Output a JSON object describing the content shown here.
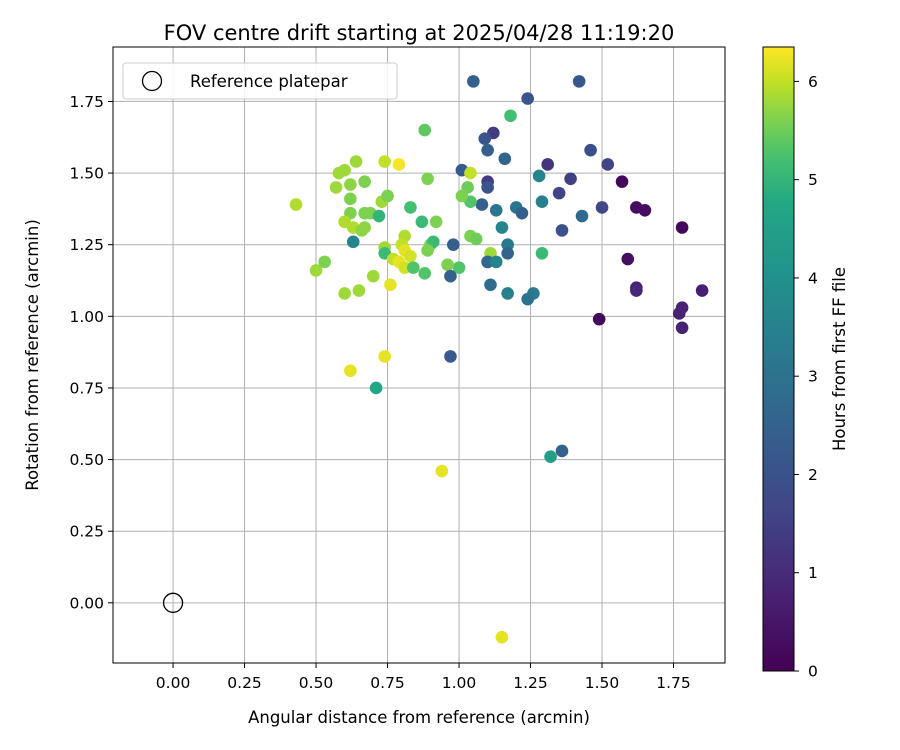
{
  "chart_data": {
    "type": "scatter",
    "title": "FOV centre drift starting at 2025/04/28 11:19:20",
    "xlabel": "Angular distance from reference (arcmin)",
    "ylabel": "Rotation from reference (arcmin)",
    "xlim": [
      -0.21,
      1.93
    ],
    "ylim": [
      -0.21,
      1.94
    ],
    "x_ticks": [
      0.0,
      0.25,
      0.5,
      0.75,
      1.0,
      1.25,
      1.5,
      1.75
    ],
    "x_tick_labels": [
      "0.00",
      "0.25",
      "0.50",
      "0.75",
      "1.00",
      "1.25",
      "1.50",
      "1.75"
    ],
    "y_ticks": [
      0.0,
      0.25,
      0.5,
      0.75,
      1.0,
      1.25,
      1.5,
      1.75
    ],
    "y_tick_labels": [
      "0.00",
      "0.25",
      "0.50",
      "0.75",
      "1.00",
      "1.25",
      "1.50",
      "1.75"
    ],
    "grid": true,
    "colorbar": {
      "label": "Hours from first FF file",
      "range": [
        0,
        6.35
      ],
      "ticks": [
        0,
        1,
        2,
        3,
        4,
        5,
        6
      ],
      "tick_labels": [
        "0",
        "1",
        "2",
        "3",
        "4",
        "5",
        "6"
      ],
      "colormap": "viridis"
    },
    "legend": {
      "position": "top-left",
      "entries": [
        "Reference platepar"
      ]
    },
    "reference_point": {
      "x": 0.0,
      "y": 0.0,
      "label": "Reference platepar"
    },
    "points": [
      [
        1.05,
        1.82,
        2.5
      ],
      [
        1.42,
        1.82,
        2.2
      ],
      [
        1.24,
        1.76,
        2.1
      ],
      [
        1.18,
        1.7,
        5.2
      ],
      [
        1.12,
        1.64,
        1.4
      ],
      [
        1.09,
        1.62,
        2.1
      ],
      [
        1.1,
        1.58,
        2.4
      ],
      [
        0.88,
        1.65,
        5.4
      ],
      [
        1.16,
        1.55,
        2.6
      ],
      [
        1.46,
        1.58,
        1.9
      ],
      [
        1.52,
        1.53,
        1.6
      ],
      [
        1.57,
        1.47,
        0.2
      ],
      [
        1.31,
        1.53,
        1.2
      ],
      [
        1.39,
        1.48,
        1.5
      ],
      [
        1.35,
        1.43,
        1.6
      ],
      [
        1.28,
        1.49,
        3.6
      ],
      [
        1.29,
        1.4,
        3.4
      ],
      [
        1.43,
        1.35,
        2.7
      ],
      [
        1.5,
        1.38,
        1.7
      ],
      [
        1.62,
        1.38,
        0.3
      ],
      [
        1.65,
        1.37,
        0.3
      ],
      [
        1.36,
        1.3,
        2.0
      ],
      [
        1.78,
        1.31,
        0.2
      ],
      [
        1.59,
        1.2,
        0.3
      ],
      [
        1.62,
        1.1,
        0.8
      ],
      [
        1.62,
        1.09,
        0.9
      ],
      [
        1.85,
        1.09,
        0.7
      ],
      [
        1.78,
        1.03,
        0.8
      ],
      [
        1.77,
        1.01,
        0.8
      ],
      [
        1.49,
        0.99,
        0.2
      ],
      [
        1.78,
        0.96,
        0.8
      ],
      [
        1.2,
        1.38,
        3.1
      ],
      [
        1.22,
        1.36,
        2.4
      ],
      [
        1.13,
        1.37,
        3.1
      ],
      [
        1.08,
        1.39,
        2.4
      ],
      [
        1.1,
        1.47,
        1.4
      ],
      [
        1.1,
        1.45,
        2.1
      ],
      [
        1.01,
        1.51,
        2.3
      ],
      [
        1.04,
        1.5,
        6.0
      ],
      [
        1.03,
        1.45,
        5.5
      ],
      [
        1.04,
        1.4,
        5.3
      ],
      [
        1.01,
        1.42,
        5.6
      ],
      [
        1.15,
        1.31,
        3.6
      ],
      [
        1.04,
        1.28,
        5.6
      ],
      [
        1.06,
        1.27,
        5.5
      ],
      [
        0.98,
        1.25,
        2.4
      ],
      [
        1.17,
        1.25,
        3.2
      ],
      [
        1.17,
        1.22,
        2.6
      ],
      [
        1.29,
        1.22,
        5.1
      ],
      [
        1.11,
        1.22,
        5.8
      ],
      [
        1.1,
        1.19,
        3.0
      ],
      [
        1.1,
        1.19,
        2.7
      ],
      [
        1.13,
        1.19,
        3.5
      ],
      [
        1.0,
        1.17,
        5.3
      ],
      [
        0.96,
        1.18,
        5.6
      ],
      [
        0.97,
        1.14,
        2.5
      ],
      [
        1.11,
        1.11,
        2.8
      ],
      [
        1.17,
        1.08,
        3.4
      ],
      [
        1.26,
        1.08,
        3.2
      ],
      [
        1.24,
        1.06,
        3.0
      ],
      [
        0.97,
        0.86,
        2.3
      ],
      [
        1.36,
        0.53,
        2.5
      ],
      [
        1.32,
        0.51,
        4.5
      ],
      [
        0.94,
        0.46,
        6.2
      ],
      [
        1.15,
        -0.12,
        6.2
      ],
      [
        0.43,
        1.39,
        5.9
      ],
      [
        0.64,
        1.54,
        5.8
      ],
      [
        0.58,
        1.5,
        5.8
      ],
      [
        0.6,
        1.51,
        5.8
      ],
      [
        0.57,
        1.45,
        5.8
      ],
      [
        0.62,
        1.46,
        5.7
      ],
      [
        0.67,
        1.47,
        5.6
      ],
      [
        0.74,
        1.54,
        6.0
      ],
      [
        0.79,
        1.53,
        6.3
      ],
      [
        0.89,
        1.48,
        5.6
      ],
      [
        0.62,
        1.41,
        5.6
      ],
      [
        0.73,
        1.4,
        5.8
      ],
      [
        0.75,
        1.42,
        5.6
      ],
      [
        0.83,
        1.38,
        5.2
      ],
      [
        0.62,
        1.36,
        5.6
      ],
      [
        0.67,
        1.36,
        5.6
      ],
      [
        0.69,
        1.36,
        5.6
      ],
      [
        0.72,
        1.35,
        5.0
      ],
      [
        0.87,
        1.33,
        5.1
      ],
      [
        0.92,
        1.33,
        5.6
      ],
      [
        0.6,
        1.33,
        5.9
      ],
      [
        0.63,
        1.31,
        5.9
      ],
      [
        0.66,
        1.3,
        5.7
      ],
      [
        0.67,
        1.31,
        5.7
      ],
      [
        0.63,
        1.26,
        3.6
      ],
      [
        0.81,
        1.28,
        5.9
      ],
      [
        0.8,
        1.25,
        6.0
      ],
      [
        0.9,
        1.25,
        5.6
      ],
      [
        0.91,
        1.26,
        5.1
      ],
      [
        0.89,
        1.23,
        5.6
      ],
      [
        0.74,
        1.24,
        5.8
      ],
      [
        0.74,
        1.22,
        5.1
      ],
      [
        0.77,
        1.2,
        6.0
      ],
      [
        0.81,
        1.23,
        6.2
      ],
      [
        0.83,
        1.21,
        6.1
      ],
      [
        0.79,
        1.19,
        6.2
      ],
      [
        0.81,
        1.17,
        6.1
      ],
      [
        0.84,
        1.17,
        5.3
      ],
      [
        0.88,
        1.15,
        5.3
      ],
      [
        0.5,
        1.16,
        5.8
      ],
      [
        0.53,
        1.19,
        5.6
      ],
      [
        0.7,
        1.14,
        5.8
      ],
      [
        0.76,
        1.11,
        6.2
      ],
      [
        0.6,
        1.08,
        5.8
      ],
      [
        0.65,
        1.09,
        5.8
      ],
      [
        0.74,
        0.86,
        6.2
      ],
      [
        0.62,
        0.81,
        6.2
      ],
      [
        0.71,
        0.75,
        4.7
      ]
    ]
  }
}
